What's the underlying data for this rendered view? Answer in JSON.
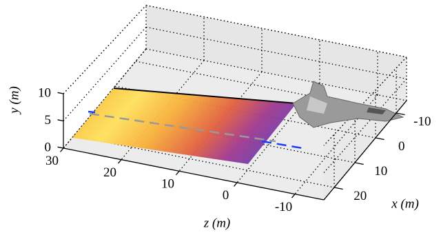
{
  "chart_data": {
    "type": "surface3d",
    "xlabel": "x (m)",
    "ylabel": "y (m)",
    "zlabel": "z (m)",
    "xlim": [
      -15,
      25
    ],
    "xticks": [
      -10,
      0,
      10,
      20
    ],
    "ylim": [
      0,
      10
    ],
    "yticks": [
      0,
      5,
      10
    ],
    "zlim": [
      -15,
      30
    ],
    "zticks": [
      30,
      20,
      10,
      0,
      -10
    ],
    "grid": true
  }
}
